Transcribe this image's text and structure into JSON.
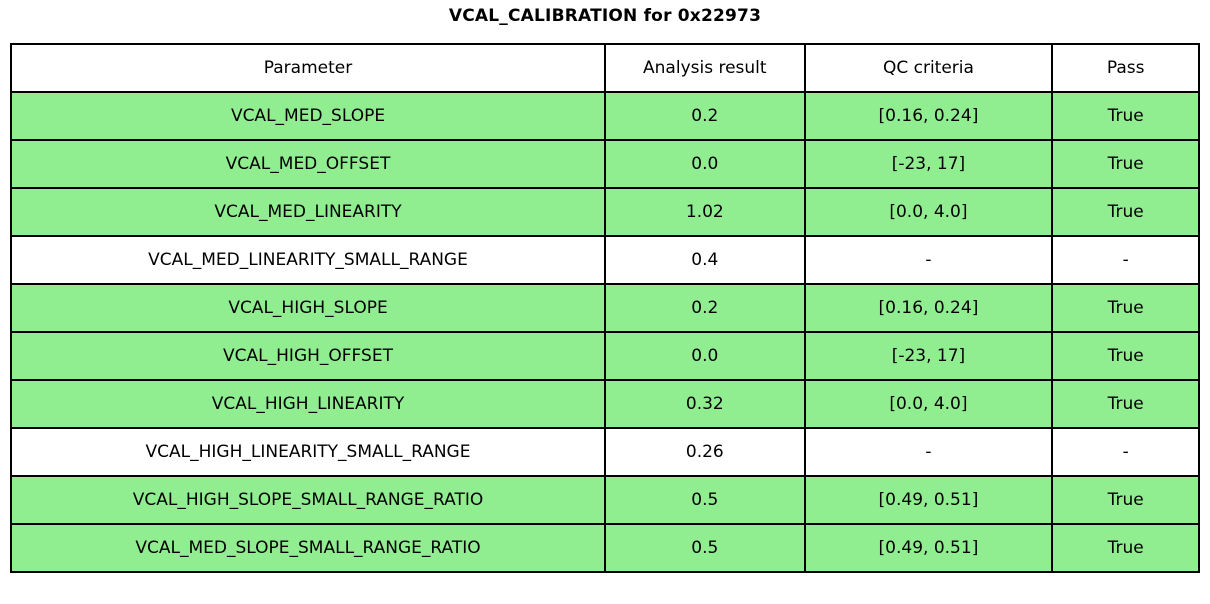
{
  "page_title": "VCAL_CALIBRATION for 0x22973",
  "colors": {
    "pass_row_bg": "#90ee90",
    "neutral_row_bg": "#ffffff",
    "border": "#000000",
    "text": "#000000"
  },
  "table": {
    "headers": {
      "parameter": "Parameter",
      "analysis_result": "Analysis result",
      "qc_criteria": "QC criteria",
      "pass": "Pass"
    },
    "rows": [
      {
        "parameter": "VCAL_MED_SLOPE",
        "analysis_result": "0.2",
        "qc_criteria": "[0.16, 0.24]",
        "pass": "True",
        "highlighted": true
      },
      {
        "parameter": "VCAL_MED_OFFSET",
        "analysis_result": "0.0",
        "qc_criteria": "[-23, 17]",
        "pass": "True",
        "highlighted": true
      },
      {
        "parameter": "VCAL_MED_LINEARITY",
        "analysis_result": "1.02",
        "qc_criteria": "[0.0, 4.0]",
        "pass": "True",
        "highlighted": true
      },
      {
        "parameter": "VCAL_MED_LINEARITY_SMALL_RANGE",
        "analysis_result": "0.4",
        "qc_criteria": "-",
        "pass": "-",
        "highlighted": false
      },
      {
        "parameter": "VCAL_HIGH_SLOPE",
        "analysis_result": "0.2",
        "qc_criteria": "[0.16, 0.24]",
        "pass": "True",
        "highlighted": true
      },
      {
        "parameter": "VCAL_HIGH_OFFSET",
        "analysis_result": "0.0",
        "qc_criteria": "[-23, 17]",
        "pass": "True",
        "highlighted": true
      },
      {
        "parameter": "VCAL_HIGH_LINEARITY",
        "analysis_result": "0.32",
        "qc_criteria": "[0.0, 4.0]",
        "pass": "True",
        "highlighted": true
      },
      {
        "parameter": "VCAL_HIGH_LINEARITY_SMALL_RANGE",
        "analysis_result": "0.26",
        "qc_criteria": "-",
        "pass": "-",
        "highlighted": false
      },
      {
        "parameter": "VCAL_HIGH_SLOPE_SMALL_RANGE_RATIO",
        "analysis_result": "0.5",
        "qc_criteria": "[0.49, 0.51]",
        "pass": "True",
        "highlighted": true
      },
      {
        "parameter": "VCAL_MED_SLOPE_SMALL_RANGE_RATIO",
        "analysis_result": "0.5",
        "qc_criteria": "[0.49, 0.51]",
        "pass": "True",
        "highlighted": true
      }
    ]
  }
}
